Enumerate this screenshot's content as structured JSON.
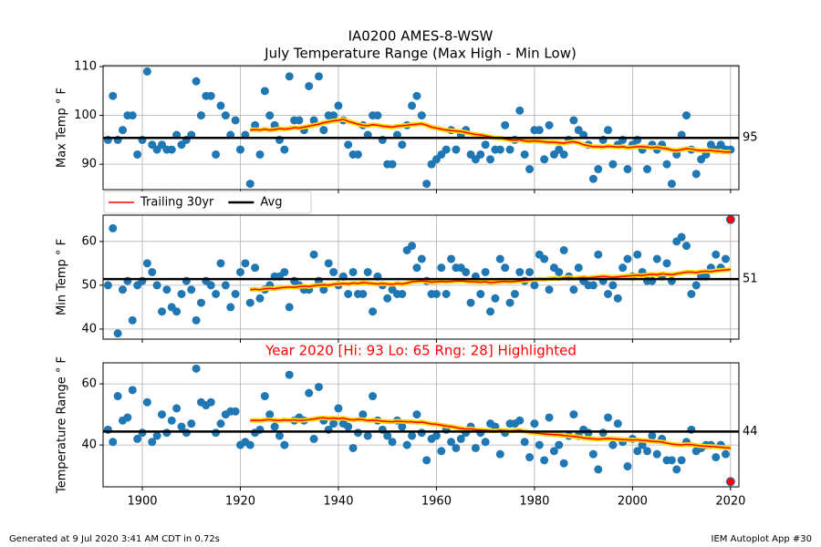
{
  "title": "IA0200 AMES-8-WSW",
  "subtitle": "July Temperature Range (Max High - Min Low)",
  "footer_left": "Generated at 9 Jul 2020 3:41 AM CDT in 0.72s",
  "footer_right": "IEM Autoplot App #30",
  "legend": {
    "loc": "upper left",
    "entries": [
      {
        "name": "Trailing 30yr",
        "color": "#ff0000"
      },
      {
        "name": "Avg",
        "color": "#000000"
      }
    ]
  },
  "chart_data": [
    {
      "type": "scatter",
      "ylabel": "Max Temp ° F",
      "color": "#1f77b4",
      "grid": true,
      "xlim": [
        1892,
        2021.7
      ],
      "xticks": [
        1900,
        1920,
        1940,
        1960,
        1980,
        2000,
        2020
      ],
      "ylim": [
        84.8,
        110.2
      ],
      "yticks": [
        90,
        100,
        110
      ],
      "x": [
        1893,
        1894,
        1895,
        1896,
        1897,
        1898,
        1899,
        1900,
        1901,
        1902,
        1903,
        1904,
        1905,
        1906,
        1907,
        1908,
        1909,
        1910,
        1911,
        1912,
        1913,
        1914,
        1915,
        1916,
        1917,
        1918,
        1919,
        1920,
        1921,
        1922,
        1923,
        1924,
        1925,
        1926,
        1927,
        1928,
        1929,
        1930,
        1931,
        1932,
        1933,
        1934,
        1935,
        1936,
        1937,
        1938,
        1939,
        1940,
        1941,
        1942,
        1943,
        1944,
        1945,
        1946,
        1947,
        1948,
        1949,
        1950,
        1951,
        1952,
        1953,
        1954,
        1955,
        1956,
        1957,
        1958,
        1959,
        1960,
        1961,
        1962,
        1963,
        1964,
        1965,
        1966,
        1967,
        1968,
        1969,
        1970,
        1971,
        1972,
        1973,
        1974,
        1975,
        1976,
        1977,
        1978,
        1979,
        1980,
        1981,
        1982,
        1983,
        1984,
        1985,
        1986,
        1987,
        1988,
        1989,
        1990,
        1991,
        1992,
        1993,
        1994,
        1995,
        1996,
        1997,
        1998,
        1999,
        2000,
        2001,
        2002,
        2003,
        2004,
        2005,
        2006,
        2007,
        2008,
        2009,
        2010,
        2011,
        2012,
        2013,
        2014,
        2015,
        2016,
        2017,
        2018,
        2019,
        2020
      ],
      "values": [
        95,
        104,
        95,
        97,
        100,
        100,
        92,
        95,
        109,
        94,
        93,
        94,
        93,
        93,
        96,
        94,
        95,
        96,
        107,
        100,
        104,
        104,
        92,
        102,
        100,
        96,
        99,
        93,
        96,
        86,
        98,
        92,
        105,
        100,
        98,
        95,
        93,
        108,
        99,
        99,
        97,
        106,
        99,
        108,
        97,
        100,
        100,
        102,
        99,
        94,
        92,
        92,
        98,
        96,
        100,
        100,
        95,
        90,
        90,
        96,
        94,
        98,
        102,
        104,
        100,
        86,
        90,
        91,
        92,
        93,
        97,
        93,
        96,
        97,
        92,
        91,
        92,
        94,
        91,
        93,
        93,
        98,
        93,
        95,
        101,
        92,
        89,
        97,
        97,
        91,
        98,
        92,
        93,
        92,
        95,
        99,
        97,
        96,
        94,
        87,
        89,
        95,
        97,
        90,
        94,
        95,
        89,
        94,
        95,
        93,
        89,
        94,
        93,
        94,
        90,
        86,
        92,
        96,
        100,
        93,
        88,
        91,
        92,
        94,
        93,
        94,
        93,
        93
      ],
      "trailing": {
        "color": "#ff0000",
        "halo": "#ffd700",
        "values": [
          null,
          null,
          null,
          null,
          null,
          null,
          null,
          null,
          null,
          null,
          null,
          null,
          null,
          null,
          null,
          null,
          null,
          null,
          null,
          null,
          null,
          null,
          null,
          null,
          null,
          null,
          null,
          null,
          null,
          97.0,
          97.1,
          97.0,
          97.2,
          97.0,
          97.1,
          97.3,
          97.2,
          97.3,
          97.5,
          97.4,
          97.6,
          97.8,
          98.0,
          98.2,
          98.5,
          98.7,
          98.9,
          99.0,
          99.2,
          98.8,
          98.5,
          98.2,
          98.0,
          97.9,
          98.1,
          98.0,
          97.8,
          97.7,
          97.6,
          97.8,
          97.9,
          98.0,
          98.1,
          98.2,
          98.3,
          98.0,
          97.6,
          97.4,
          97.2,
          97.0,
          96.9,
          96.8,
          96.7,
          96.5,
          96.3,
          96.1,
          96.0,
          95.8,
          95.6,
          95.4,
          95.3,
          95.2,
          95.0,
          94.9,
          95.0,
          94.8,
          94.7,
          94.8,
          94.7,
          94.6,
          94.5,
          94.5,
          94.4,
          94.3,
          94.5,
          94.6,
          94.4,
          94.0,
          93.8,
          93.6,
          93.6,
          93.5,
          93.7,
          93.6,
          93.5,
          93.6,
          93.4,
          93.5,
          93.6,
          93.6,
          93.5,
          93.4,
          93.5,
          93.3,
          93.2,
          92.9,
          92.8,
          93.0,
          93.2,
          93.1,
          92.9,
          92.8,
          92.8,
          92.8,
          92.7,
          92.6,
          92.5,
          92.5
        ]
      },
      "avg": {
        "value": 95.4,
        "label": "95",
        "color": "#000000"
      }
    },
    {
      "type": "scatter",
      "ylabel": "Min Temp ° F",
      "color": "#1f77b4",
      "grid": true,
      "highlight_x": 2020,
      "highlight_color": "#ff0000",
      "xlim": [
        1892,
        2021.7
      ],
      "xticks": [
        1900,
        1920,
        1940,
        1960,
        1980,
        2000,
        2020
      ],
      "ylim": [
        37.7,
        66.0
      ],
      "yticks": [
        40,
        50,
        60
      ],
      "x": [
        1893,
        1894,
        1895,
        1896,
        1897,
        1898,
        1899,
        1900,
        1901,
        1902,
        1903,
        1904,
        1905,
        1906,
        1907,
        1908,
        1909,
        1910,
        1911,
        1912,
        1913,
        1914,
        1915,
        1916,
        1917,
        1918,
        1919,
        1920,
        1921,
        1922,
        1923,
        1924,
        1925,
        1926,
        1927,
        1928,
        1929,
        1930,
        1931,
        1932,
        1933,
        1934,
        1935,
        1936,
        1937,
        1938,
        1939,
        1940,
        1941,
        1942,
        1943,
        1944,
        1945,
        1946,
        1947,
        1948,
        1949,
        1950,
        1951,
        1952,
        1953,
        1954,
        1955,
        1956,
        1957,
        1958,
        1959,
        1960,
        1961,
        1962,
        1963,
        1964,
        1965,
        1966,
        1967,
        1968,
        1969,
        1970,
        1971,
        1972,
        1973,
        1974,
        1975,
        1976,
        1977,
        1978,
        1979,
        1980,
        1981,
        1982,
        1983,
        1984,
        1985,
        1986,
        1987,
        1988,
        1989,
        1990,
        1991,
        1992,
        1993,
        1994,
        1995,
        1996,
        1997,
        1998,
        1999,
        2000,
        2001,
        2002,
        2003,
        2004,
        2005,
        2006,
        2007,
        2008,
        2009,
        2010,
        2011,
        2012,
        2013,
        2014,
        2015,
        2016,
        2017,
        2018,
        2019,
        2020
      ],
      "values": [
        50,
        63,
        39,
        49,
        51,
        42,
        50,
        51,
        55,
        53,
        50,
        44,
        49,
        45,
        44,
        48,
        51,
        49,
        42,
        46,
        51,
        50,
        48,
        55,
        50,
        45,
        48,
        53,
        55,
        46,
        54,
        47,
        49,
        50,
        52,
        52,
        53,
        45,
        51,
        50,
        49,
        49,
        57,
        51,
        49,
        55,
        53,
        50,
        52,
        48,
        53,
        48,
        48,
        53,
        44,
        52,
        50,
        47,
        49,
        48,
        48,
        58,
        59,
        54,
        56,
        51,
        48,
        48,
        54,
        48,
        56,
        54,
        54,
        53,
        46,
        52,
        48,
        53,
        44,
        47,
        56,
        54,
        46,
        48,
        53,
        51,
        53,
        50,
        57,
        56,
        49,
        54,
        53,
        58,
        52,
        49,
        54,
        51,
        50,
        50,
        57,
        51,
        48,
        50,
        47,
        54,
        56,
        52,
        57,
        53,
        51,
        51,
        56,
        52,
        55,
        51,
        60,
        61,
        59,
        48,
        50,
        52,
        52,
        54,
        57,
        54,
        56,
        65
      ],
      "trailing": {
        "color": "#ff0000",
        "halo": "#ffd700",
        "values": [
          null,
          null,
          null,
          null,
          null,
          null,
          null,
          null,
          null,
          null,
          null,
          null,
          null,
          null,
          null,
          null,
          null,
          null,
          null,
          null,
          null,
          null,
          null,
          null,
          null,
          null,
          null,
          null,
          null,
          49.0,
          49.1,
          49.0,
          49.2,
          49.3,
          49.2,
          49.4,
          49.5,
          49.6,
          49.5,
          49.7,
          49.8,
          49.7,
          49.9,
          50.0,
          50.1,
          50.0,
          50.2,
          50.3,
          50.4,
          50.3,
          50.5,
          50.4,
          50.6,
          50.5,
          50.4,
          50.3,
          50.4,
          50.3,
          50.2,
          50.4,
          50.3,
          50.5,
          50.8,
          50.9,
          51.0,
          50.9,
          50.7,
          50.8,
          50.9,
          50.8,
          50.9,
          51.0,
          51.0,
          50.9,
          50.8,
          50.8,
          50.7,
          50.8,
          50.6,
          50.7,
          50.8,
          50.9,
          50.8,
          50.9,
          51.0,
          51.1,
          51.2,
          51.3,
          51.4,
          51.3,
          51.5,
          51.6,
          51.5,
          51.7,
          51.8,
          51.6,
          51.7,
          51.8,
          51.7,
          51.8,
          51.9,
          52.0,
          51.9,
          51.8,
          51.9,
          52.0,
          52.1,
          52.2,
          52.3,
          52.2,
          52.4,
          52.5,
          52.4,
          52.6,
          52.5,
          52.4,
          52.6,
          52.8,
          53.0,
          53.0,
          52.9,
          53.1,
          53.2,
          53.1,
          53.3,
          53.4,
          53.5,
          53.6
        ]
      },
      "avg": {
        "value": 51.4,
        "label": "51",
        "color": "#000000"
      }
    },
    {
      "type": "scatter",
      "title": "Year 2020 [Hi: 93 Lo: 65 Rng: 28] Highlighted",
      "title_color": "#ff0000",
      "ylabel": "Temperature Range ° F",
      "color": "#1f77b4",
      "grid": true,
      "highlight_x": 2020,
      "highlight_color": "#ff0000",
      "xlim": [
        1892,
        2021.7
      ],
      "xticks": [
        1900,
        1920,
        1940,
        1960,
        1980,
        2000,
        2020
      ],
      "ylim": [
        26.3,
        66.9
      ],
      "yticks": [
        40,
        60
      ],
      "x": [
        1893,
        1894,
        1895,
        1896,
        1897,
        1898,
        1899,
        1900,
        1901,
        1902,
        1903,
        1904,
        1905,
        1906,
        1907,
        1908,
        1909,
        1910,
        1911,
        1912,
        1913,
        1914,
        1915,
        1916,
        1917,
        1918,
        1919,
        1920,
        1921,
        1922,
        1923,
        1924,
        1925,
        1926,
        1927,
        1928,
        1929,
        1930,
        1931,
        1932,
        1933,
        1934,
        1935,
        1936,
        1937,
        1938,
        1939,
        1940,
        1941,
        1942,
        1943,
        1944,
        1945,
        1946,
        1947,
        1948,
        1949,
        1950,
        1951,
        1952,
        1953,
        1954,
        1955,
        1956,
        1957,
        1958,
        1959,
        1960,
        1961,
        1962,
        1963,
        1964,
        1965,
        1966,
        1967,
        1968,
        1969,
        1970,
        1971,
        1972,
        1973,
        1974,
        1975,
        1976,
        1977,
        1978,
        1979,
        1980,
        1981,
        1982,
        1983,
        1984,
        1985,
        1986,
        1987,
        1988,
        1989,
        1990,
        1991,
        1992,
        1993,
        1994,
        1995,
        1996,
        1997,
        1998,
        1999,
        2000,
        2001,
        2002,
        2003,
        2004,
        2005,
        2006,
        2007,
        2008,
        2009,
        2010,
        2011,
        2012,
        2013,
        2014,
        2015,
        2016,
        2017,
        2018,
        2019,
        2020
      ],
      "values": [
        45,
        41,
        56,
        48,
        49,
        58,
        42,
        44,
        54,
        41,
        43,
        50,
        44,
        48,
        52,
        46,
        44,
        47,
        65,
        54,
        53,
        54,
        44,
        47,
        50,
        51,
        51,
        40,
        41,
        40,
        44,
        45,
        56,
        50,
        46,
        43,
        40,
        63,
        48,
        49,
        48,
        57,
        42,
        59,
        48,
        45,
        47,
        52,
        47,
        46,
        39,
        44,
        50,
        43,
        56,
        48,
        45,
        43,
        41,
        48,
        46,
        40,
        43,
        50,
        44,
        35,
        42,
        43,
        38,
        45,
        41,
        39,
        42,
        44,
        46,
        39,
        44,
        41,
        47,
        46,
        37,
        44,
        47,
        47,
        48,
        41,
        36,
        47,
        40,
        35,
        49,
        38,
        40,
        34,
        43,
        50,
        43,
        45,
        44,
        37,
        32,
        44,
        49,
        40,
        47,
        41,
        33,
        42,
        38,
        40,
        38,
        43,
        37,
        42,
        35,
        35,
        32,
        35,
        41,
        45,
        38,
        39,
        40,
        40,
        36,
        40,
        37,
        28
      ],
      "trailing": {
        "color": "#ff0000",
        "halo": "#ffd700",
        "values": [
          null,
          null,
          null,
          null,
          null,
          null,
          null,
          null,
          null,
          null,
          null,
          null,
          null,
          null,
          null,
          null,
          null,
          null,
          null,
          null,
          null,
          null,
          null,
          null,
          null,
          null,
          null,
          null,
          null,
          48.0,
          48.1,
          48.0,
          48.2,
          48.3,
          48.1,
          48.0,
          48.2,
          48.1,
          48.2,
          48.0,
          48.1,
          48.3,
          48.5,
          48.8,
          48.9,
          48.7,
          48.8,
          48.6,
          48.8,
          48.4,
          48.2,
          48.4,
          48.3,
          48.0,
          48.1,
          48.0,
          47.8,
          47.7,
          47.6,
          47.8,
          47.7,
          47.6,
          47.6,
          47.4,
          47.5,
          47.2,
          46.9,
          46.8,
          46.5,
          46.2,
          46.0,
          45.7,
          45.4,
          45.2,
          45.3,
          45.0,
          44.9,
          44.8,
          44.7,
          44.6,
          44.8,
          44.7,
          44.6,
          44.7,
          44.8,
          44.5,
          44.1,
          44.0,
          43.8,
          43.6,
          43.5,
          43.4,
          43.3,
          43.1,
          43.0,
          42.8,
          42.6,
          42.3,
          42.2,
          42.0,
          41.9,
          42.0,
          42.1,
          42.0,
          41.9,
          41.8,
          41.7,
          41.6,
          41.7,
          41.5,
          41.4,
          41.2,
          41.1,
          41.0,
          40.6,
          40.3,
          40.1,
          40.0,
          40.2,
          40.1,
          39.9,
          39.7,
          39.6,
          39.5,
          39.4,
          39.3,
          39.1,
          39.0
        ]
      },
      "avg": {
        "value": 44.4,
        "label": "44",
        "color": "#000000"
      }
    }
  ]
}
